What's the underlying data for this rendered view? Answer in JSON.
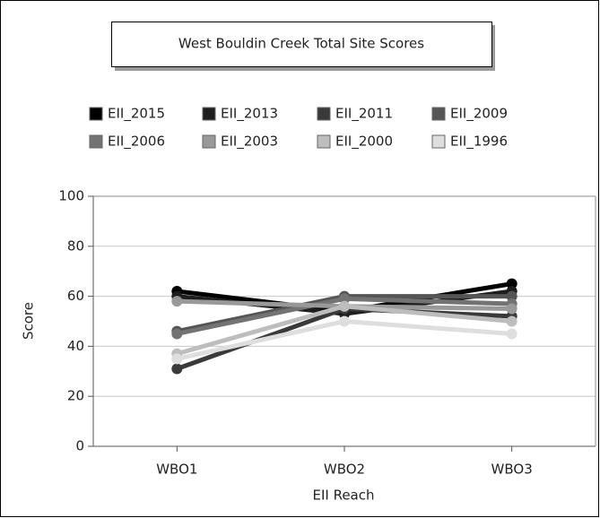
{
  "chart_data": {
    "type": "line",
    "title": "West Bouldin Creek Total Site Scores",
    "x_label": "EII Reach",
    "y_label": "Score",
    "categories": [
      "WBO1",
      "WBO2",
      "WBO3"
    ],
    "series": [
      {
        "name": "EII_2015",
        "color": "#000000",
        "values": [
          62,
          54,
          65
        ]
      },
      {
        "name": "EII_2013",
        "color": "#1e1e1e",
        "values": [
          60,
          53,
          62
        ]
      },
      {
        "name": "EII_2011",
        "color": "#3a3a3a",
        "values": [
          31,
          55,
          52
        ]
      },
      {
        "name": "EII_2009",
        "color": "#555555",
        "values": [
          46,
          60,
          60
        ]
      },
      {
        "name": "EII_2006",
        "color": "#737373",
        "values": [
          45,
          59,
          57
        ]
      },
      {
        "name": "EII_2003",
        "color": "#999999",
        "values": [
          58,
          56,
          55
        ]
      },
      {
        "name": "EII_2000",
        "color": "#bdbdbd",
        "values": [
          37,
          56,
          50
        ]
      },
      {
        "name": "EII_1996",
        "color": "#dedede",
        "values": [
          35,
          50,
          45
        ]
      }
    ],
    "ylim": [
      0,
      100
    ],
    "yticks": [
      0,
      20,
      40,
      60,
      80,
      100
    ],
    "grid": true,
    "legend": "top"
  }
}
